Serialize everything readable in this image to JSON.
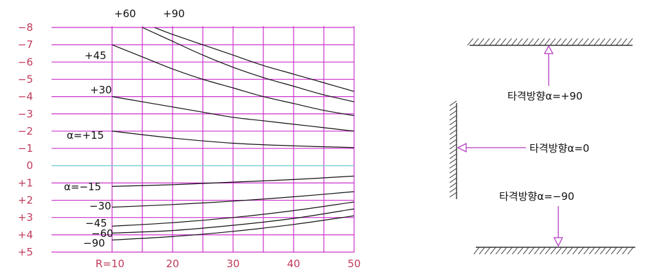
{
  "chart_data": {
    "type": "line",
    "xlim": [
      0,
      50
    ],
    "ylim": [
      -8,
      5
    ],
    "x_tick_labels": [
      {
        "x": 10,
        "label": "R=10"
      },
      {
        "x": 20,
        "label": "20"
      },
      {
        "x": 30,
        "label": "30"
      },
      {
        "x": 40,
        "label": "40"
      },
      {
        "x": 50,
        "label": "50"
      }
    ],
    "y_tick_labels": [
      {
        "y": -8,
        "label": "−8"
      },
      {
        "y": -7,
        "label": "−7"
      },
      {
        "y": -6,
        "label": "−6"
      },
      {
        "y": -5,
        "label": "−5"
      },
      {
        "y": -4,
        "label": "−4"
      },
      {
        "y": -3,
        "label": "−3"
      },
      {
        "y": -2,
        "label": "−2"
      },
      {
        "y": -1,
        "label": "−1"
      },
      {
        "y": 0,
        "label": "0"
      },
      {
        "y": 1,
        "label": "+1"
      },
      {
        "y": 2,
        "label": "+2"
      },
      {
        "y": 3,
        "label": "+3"
      },
      {
        "y": 4,
        "label": "+4"
      },
      {
        "y": 5,
        "label": "+5"
      }
    ],
    "grid_x": [
      10,
      15,
      20,
      25,
      30,
      35,
      40,
      45,
      50
    ],
    "grid_y": [
      -8,
      -7,
      -6,
      -5,
      -4,
      -3,
      -2,
      -1,
      0,
      1,
      2,
      3,
      4,
      5
    ],
    "colors": {
      "grid": "#cc33cc",
      "zero_line": "#66cccc",
      "curve": "#111111",
      "tick_text": "#c0395a",
      "label_text": "#111111"
    },
    "series": [
      {
        "name": "+90",
        "x": [
          17,
          20,
          25,
          30,
          35,
          40,
          45,
          50
        ],
        "y": [
          -8.0,
          -7.6,
          -7.0,
          -6.4,
          -5.8,
          -5.3,
          -4.8,
          -4.3
        ]
      },
      {
        "name": "+60",
        "x": [
          15,
          20,
          25,
          30,
          35,
          40,
          45,
          50
        ],
        "y": [
          -8.0,
          -7.2,
          -6.4,
          -5.7,
          -5.1,
          -4.6,
          -4.1,
          -3.7
        ]
      },
      {
        "name": "+45",
        "x": [
          10,
          15,
          20,
          25,
          30,
          35,
          40,
          45,
          50
        ],
        "y": [
          -7.0,
          -6.3,
          -5.6,
          -5.0,
          -4.5,
          -4.0,
          -3.6,
          -3.2,
          -2.9
        ]
      },
      {
        "name": "+30",
        "x": [
          10,
          15,
          20,
          25,
          30,
          35,
          40,
          45,
          50
        ],
        "y": [
          -4.0,
          -3.7,
          -3.4,
          -3.1,
          -2.8,
          -2.6,
          -2.4,
          -2.2,
          -2.0
        ]
      },
      {
        "name": "α=+15",
        "x": [
          10,
          20,
          30,
          40,
          50
        ],
        "y": [
          -2.0,
          -1.6,
          -1.3,
          -1.15,
          -1.05
        ]
      },
      {
        "name": "α=−15",
        "x": [
          10,
          20,
          30,
          40,
          50
        ],
        "y": [
          1.2,
          1.1,
          0.95,
          0.8,
          0.6
        ]
      },
      {
        "name": "−30",
        "x": [
          10,
          20,
          30,
          40,
          50
        ],
        "y": [
          2.4,
          2.25,
          2.05,
          1.8,
          1.5
        ]
      },
      {
        "name": "−45",
        "x": [
          10,
          20,
          30,
          40,
          50
        ],
        "y": [
          3.5,
          3.3,
          3.0,
          2.6,
          2.1
        ]
      },
      {
        "name": "−60",
        "x": [
          10,
          20,
          30,
          40,
          50
        ],
        "y": [
          3.9,
          3.75,
          3.45,
          3.05,
          2.5
        ]
      },
      {
        "name": "−90",
        "x": [
          10,
          20,
          30,
          40,
          50
        ],
        "y": [
          4.3,
          4.1,
          3.8,
          3.4,
          2.9
        ]
      }
    ]
  },
  "curve_labels": {
    "p60": "+60",
    "p90": "+90",
    "p45": "+45",
    "p30": "+30",
    "p15": "α=+15",
    "m15": "α=−15",
    "m30": "−30",
    "m45": "−45",
    "m60": "−60",
    "m90": "−90"
  },
  "diagram": {
    "up_label": "타격방향α=+90",
    "horizontal_label": "타격방향α=0",
    "down_label": "타격방향α=−90",
    "arrow_color": "#b33cc0",
    "hatch_color": "#333333"
  }
}
